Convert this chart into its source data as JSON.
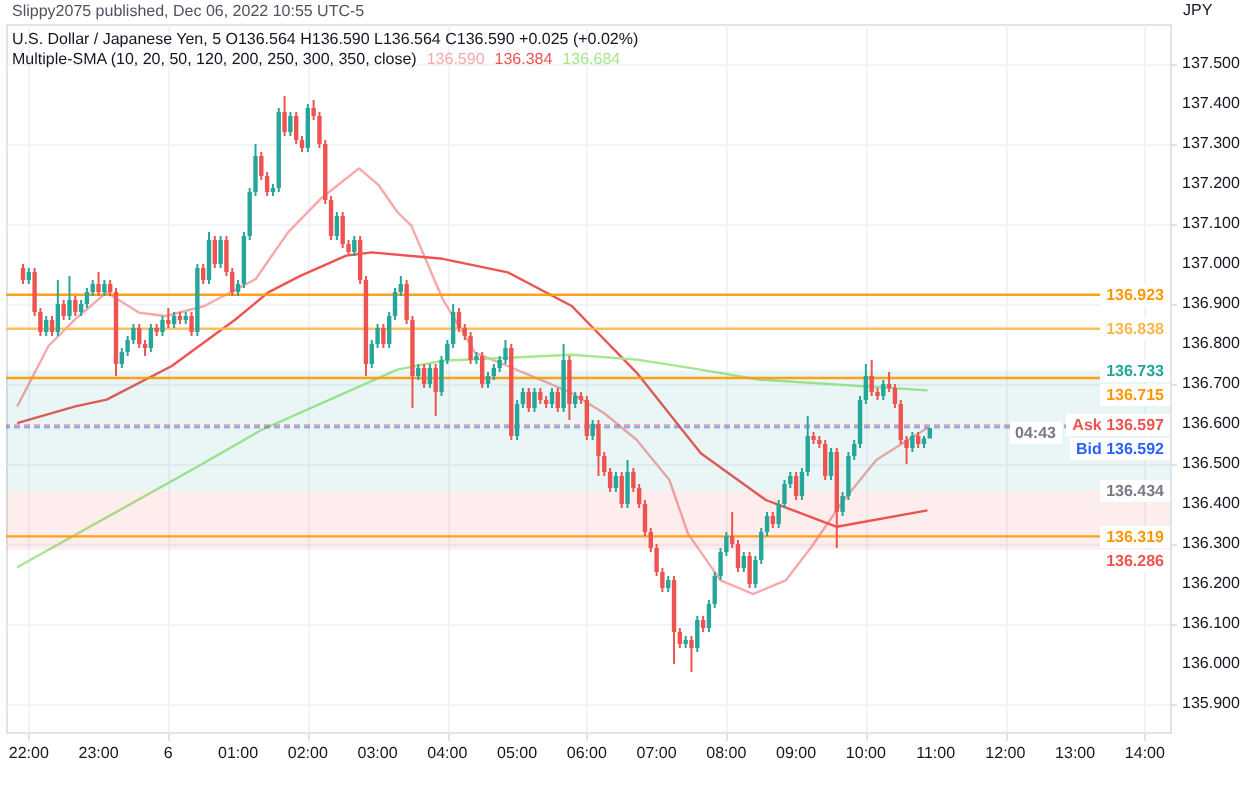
{
  "chart_data": {
    "type": "candlestick",
    "title": "Slippy2075 published, Dec 06, 2022 10:55 UTC-5",
    "subtitle": "U.S. Dollar / Japanese Yen, 5  O136.564 H136.590 L136.564 C136.590 +0.025 (+0.02%)",
    "ylabel": "JPY",
    "x": [
      "2022-12-05T21:55",
      "2022-12-05T22:00",
      "2022-12-05T22:05",
      "2022-12-05T22:10",
      "2022-12-05T22:15",
      "2022-12-05T22:20",
      "2022-12-05T22:25",
      "2022-12-05T22:30",
      "2022-12-05T22:35",
      "2022-12-05T22:40",
      "2022-12-05T22:45",
      "2022-12-05T22:50",
      "2022-12-05T22:55",
      "2022-12-05T23:00",
      "2022-12-05T23:05",
      "2022-12-05T23:10",
      "2022-12-05T23:15",
      "2022-12-05T23:20",
      "2022-12-05T23:25",
      "2022-12-05T23:30",
      "2022-12-05T23:35",
      "2022-12-05T23:40",
      "2022-12-05T23:45",
      "2022-12-05T23:50",
      "2022-12-05T23:55",
      "2022-12-06T00:00",
      "2022-12-06T00:05",
      "2022-12-06T00:10",
      "2022-12-06T00:15",
      "2022-12-06T00:20",
      "2022-12-06T00:25",
      "2022-12-06T00:30",
      "2022-12-06T00:35",
      "2022-12-06T00:40",
      "2022-12-06T00:45",
      "2022-12-06T00:50",
      "2022-12-06T00:55",
      "2022-12-06T01:00",
      "2022-12-06T01:05",
      "2022-12-06T01:10",
      "2022-12-06T01:15",
      "2022-12-06T01:20",
      "2022-12-06T01:25",
      "2022-12-06T01:30",
      "2022-12-06T01:35",
      "2022-12-06T01:40",
      "2022-12-06T01:45",
      "2022-12-06T01:50",
      "2022-12-06T01:55",
      "2022-12-06T02:00",
      "2022-12-06T02:05",
      "2022-12-06T02:10",
      "2022-12-06T02:15",
      "2022-12-06T02:20",
      "2022-12-06T02:25",
      "2022-12-06T02:30",
      "2022-12-06T02:35",
      "2022-12-06T02:40",
      "2022-12-06T02:45",
      "2022-12-06T02:50",
      "2022-12-06T02:55",
      "2022-12-06T03:00",
      "2022-12-06T03:05",
      "2022-12-06T03:10",
      "2022-12-06T03:15",
      "2022-12-06T03:20",
      "2022-12-06T03:25",
      "2022-12-06T03:30",
      "2022-12-06T03:35",
      "2022-12-06T03:40",
      "2022-12-06T03:45",
      "2022-12-06T03:50",
      "2022-12-06T03:55",
      "2022-12-06T04:00",
      "2022-12-06T04:05",
      "2022-12-06T04:10",
      "2022-12-06T04:15",
      "2022-12-06T04:20",
      "2022-12-06T04:25",
      "2022-12-06T04:30",
      "2022-12-06T04:35",
      "2022-12-06T04:40",
      "2022-12-06T04:45",
      "2022-12-06T04:50",
      "2022-12-06T04:55",
      "2022-12-06T05:00",
      "2022-12-06T05:05",
      "2022-12-06T05:10",
      "2022-12-06T05:15",
      "2022-12-06T05:20",
      "2022-12-06T05:25",
      "2022-12-06T05:30",
      "2022-12-06T05:35",
      "2022-12-06T05:40",
      "2022-12-06T05:45",
      "2022-12-06T05:50",
      "2022-12-06T05:55",
      "2022-12-06T06:00",
      "2022-12-06T06:05",
      "2022-12-06T06:10",
      "2022-12-06T06:15",
      "2022-12-06T06:20",
      "2022-12-06T06:25",
      "2022-12-06T06:30",
      "2022-12-06T06:35",
      "2022-12-06T06:40",
      "2022-12-06T06:45",
      "2022-12-06T06:50",
      "2022-12-06T06:55",
      "2022-12-06T07:00",
      "2022-12-06T07:05",
      "2022-12-06T07:10",
      "2022-12-06T07:15",
      "2022-12-06T07:20",
      "2022-12-06T07:25",
      "2022-12-06T07:30",
      "2022-12-06T07:35",
      "2022-12-06T07:40",
      "2022-12-06T07:45",
      "2022-12-06T07:50",
      "2022-12-06T07:55",
      "2022-12-06T08:00",
      "2022-12-06T08:05",
      "2022-12-06T08:10",
      "2022-12-06T08:15",
      "2022-12-06T08:20",
      "2022-12-06T08:25",
      "2022-12-06T08:30",
      "2022-12-06T08:35",
      "2022-12-06T08:40",
      "2022-12-06T08:45",
      "2022-12-06T08:50",
      "2022-12-06T08:55",
      "2022-12-06T09:00",
      "2022-12-06T09:05",
      "2022-12-06T09:10",
      "2022-12-06T09:15",
      "2022-12-06T09:20",
      "2022-12-06T09:25",
      "2022-12-06T09:30",
      "2022-12-06T09:35",
      "2022-12-06T09:40",
      "2022-12-06T09:45",
      "2022-12-06T09:50",
      "2022-12-06T09:55",
      "2022-12-06T10:00",
      "2022-12-06T10:05",
      "2022-12-06T10:10",
      "2022-12-06T10:15",
      "2022-12-06T10:20",
      "2022-12-06T10:25",
      "2022-12-06T10:30",
      "2022-12-06T10:35",
      "2022-12-06T10:40",
      "2022-12-06T10:45",
      "2022-12-06T10:50",
      "2022-12-06T10:55"
    ],
    "ohlc": [
      [
        136.99,
        137.0,
        136.95,
        136.96
      ],
      [
        136.96,
        136.99,
        136.95,
        136.98
      ],
      [
        136.98,
        136.99,
        136.87,
        136.88
      ],
      [
        136.88,
        136.89,
        136.82,
        136.83
      ],
      [
        136.83,
        136.87,
        136.82,
        136.86
      ],
      [
        136.86,
        136.87,
        136.82,
        136.83
      ],
      [
        136.83,
        136.96,
        136.82,
        136.9
      ],
      [
        136.9,
        136.91,
        136.86,
        136.87
      ],
      [
        136.87,
        136.97,
        136.86,
        136.91
      ],
      [
        136.91,
        136.92,
        136.87,
        136.88
      ],
      [
        136.88,
        136.91,
        136.87,
        136.9
      ],
      [
        136.9,
        136.94,
        136.89,
        136.93
      ],
      [
        136.93,
        136.96,
        136.92,
        136.95
      ],
      [
        136.95,
        136.98,
        136.92,
        136.93
      ],
      [
        136.93,
        136.96,
        136.92,
        136.95
      ],
      [
        136.95,
        136.96,
        136.92,
        136.93
      ],
      [
        136.93,
        136.94,
        136.72,
        136.75
      ],
      [
        136.75,
        136.79,
        136.74,
        136.78
      ],
      [
        136.78,
        136.82,
        136.77,
        136.81
      ],
      [
        136.81,
        136.85,
        136.8,
        136.84
      ],
      [
        136.84,
        136.85,
        136.79,
        136.8
      ],
      [
        136.8,
        136.81,
        136.77,
        136.79
      ],
      [
        136.79,
        136.85,
        136.78,
        136.84
      ],
      [
        136.84,
        136.85,
        136.82,
        136.83
      ],
      [
        136.83,
        136.87,
        136.82,
        136.86
      ],
      [
        136.86,
        136.89,
        136.84,
        136.85
      ],
      [
        136.85,
        136.88,
        136.84,
        136.87
      ],
      [
        136.87,
        136.88,
        136.85,
        136.86
      ],
      [
        136.86,
        136.88,
        136.85,
        136.87
      ],
      [
        136.87,
        136.88,
        136.82,
        136.83
      ],
      [
        136.83,
        137.0,
        136.82,
        136.99
      ],
      [
        136.99,
        137.0,
        136.95,
        136.96
      ],
      [
        136.96,
        137.08,
        136.95,
        137.06
      ],
      [
        137.06,
        137.07,
        136.99,
        137.0
      ],
      [
        137.0,
        137.07,
        136.99,
        137.06
      ],
      [
        137.06,
        137.07,
        136.97,
        136.98
      ],
      [
        136.98,
        136.99,
        136.92,
        136.93
      ],
      [
        136.93,
        136.96,
        136.92,
        136.95
      ],
      [
        136.95,
        137.08,
        136.94,
        137.07
      ],
      [
        137.07,
        137.19,
        137.06,
        137.18
      ],
      [
        137.18,
        137.3,
        137.17,
        137.27
      ],
      [
        137.27,
        137.28,
        137.21,
        137.22
      ],
      [
        137.22,
        137.23,
        137.17,
        137.18
      ],
      [
        137.18,
        137.2,
        137.17,
        137.19
      ],
      [
        137.19,
        137.39,
        137.18,
        137.38
      ],
      [
        137.38,
        137.42,
        137.32,
        137.33
      ],
      [
        137.33,
        137.38,
        137.32,
        137.37
      ],
      [
        137.37,
        137.38,
        137.3,
        137.31
      ],
      [
        137.31,
        137.32,
        137.28,
        137.29
      ],
      [
        137.29,
        137.4,
        137.28,
        137.39
      ],
      [
        137.39,
        137.41,
        137.36,
        137.37
      ],
      [
        137.37,
        137.38,
        137.29,
        137.3
      ],
      [
        137.3,
        137.31,
        137.15,
        137.16
      ],
      [
        137.16,
        137.17,
        137.06,
        137.07
      ],
      [
        137.07,
        137.13,
        137.06,
        137.12
      ],
      [
        137.12,
        137.13,
        137.04,
        137.05
      ],
      [
        137.05,
        137.06,
        137.02,
        137.03
      ],
      [
        137.03,
        137.07,
        137.02,
        137.06
      ],
      [
        137.06,
        137.07,
        136.95,
        136.96
      ],
      [
        136.96,
        136.97,
        136.72,
        136.75
      ],
      [
        136.75,
        136.81,
        136.74,
        136.8
      ],
      [
        136.8,
        136.85,
        136.79,
        136.84
      ],
      [
        136.84,
        136.85,
        136.79,
        136.8
      ],
      [
        136.8,
        136.88,
        136.79,
        136.87
      ],
      [
        136.87,
        136.94,
        136.86,
        136.93
      ],
      [
        136.93,
        136.97,
        136.92,
        136.95
      ],
      [
        136.95,
        136.96,
        136.85,
        136.86
      ],
      [
        136.86,
        136.87,
        136.64,
        136.72
      ],
      [
        136.72,
        136.75,
        136.71,
        136.74
      ],
      [
        136.74,
        136.75,
        136.69,
        136.7
      ],
      [
        136.7,
        136.75,
        136.69,
        136.74
      ],
      [
        136.74,
        136.75,
        136.62,
        136.68
      ],
      [
        136.68,
        136.77,
        136.67,
        136.76
      ],
      [
        136.76,
        136.81,
        136.75,
        136.8
      ],
      [
        136.8,
        136.9,
        136.79,
        136.88
      ],
      [
        136.88,
        136.89,
        136.83,
        136.84
      ],
      [
        136.84,
        136.85,
        136.81,
        136.82
      ],
      [
        136.82,
        136.83,
        136.75,
        136.76
      ],
      [
        136.76,
        136.78,
        136.75,
        136.77
      ],
      [
        136.77,
        136.78,
        136.69,
        136.7
      ],
      [
        136.7,
        136.73,
        136.69,
        136.72
      ],
      [
        136.72,
        136.75,
        136.71,
        136.74
      ],
      [
        136.74,
        136.77,
        136.73,
        136.76
      ],
      [
        136.76,
        136.81,
        136.75,
        136.79
      ],
      [
        136.79,
        136.8,
        136.56,
        136.57
      ],
      [
        136.57,
        136.66,
        136.56,
        136.65
      ],
      [
        136.65,
        136.69,
        136.64,
        136.68
      ],
      [
        136.68,
        136.69,
        136.63,
        136.64
      ],
      [
        136.64,
        136.69,
        136.63,
        136.68
      ],
      [
        136.68,
        136.69,
        136.65,
        136.66
      ],
      [
        136.66,
        136.67,
        136.64,
        136.65
      ],
      [
        136.65,
        136.69,
        136.64,
        136.68
      ],
      [
        136.68,
        136.69,
        136.63,
        136.64
      ],
      [
        136.64,
        136.8,
        136.63,
        136.76
      ],
      [
        136.76,
        136.77,
        136.61,
        136.65
      ],
      [
        136.65,
        136.68,
        136.64,
        136.67
      ],
      [
        136.67,
        136.68,
        136.65,
        136.66
      ],
      [
        136.66,
        136.67,
        136.56,
        136.57
      ],
      [
        136.57,
        136.61,
        136.56,
        136.6
      ],
      [
        136.6,
        136.61,
        136.47,
        136.52
      ],
      [
        136.52,
        136.53,
        136.47,
        136.48
      ],
      [
        136.48,
        136.49,
        136.43,
        136.44
      ],
      [
        136.44,
        136.48,
        136.43,
        136.47
      ],
      [
        136.47,
        136.48,
        136.39,
        136.4
      ],
      [
        136.4,
        136.51,
        136.39,
        136.48
      ],
      [
        136.48,
        136.49,
        136.43,
        136.44
      ],
      [
        136.44,
        136.45,
        136.39,
        136.4
      ],
      [
        136.4,
        136.41,
        136.32,
        136.33
      ],
      [
        136.33,
        136.34,
        136.28,
        136.29
      ],
      [
        136.29,
        136.3,
        136.22,
        136.23
      ],
      [
        136.23,
        136.24,
        136.18,
        136.19
      ],
      [
        136.19,
        136.22,
        136.18,
        136.21
      ],
      [
        136.21,
        136.22,
        136.0,
        136.08
      ],
      [
        136.08,
        136.09,
        136.04,
        136.05
      ],
      [
        136.05,
        136.07,
        136.04,
        136.06
      ],
      [
        136.06,
        136.07,
        135.98,
        136.04
      ],
      [
        136.04,
        136.12,
        136.03,
        136.11
      ],
      [
        136.11,
        136.12,
        136.08,
        136.09
      ],
      [
        136.09,
        136.16,
        136.08,
        136.15
      ],
      [
        136.15,
        136.23,
        136.14,
        136.22
      ],
      [
        136.22,
        136.29,
        136.21,
        136.28
      ],
      [
        136.28,
        136.33,
        136.27,
        136.32
      ],
      [
        136.32,
        136.38,
        136.29,
        136.3
      ],
      [
        136.3,
        136.31,
        136.23,
        136.24
      ],
      [
        136.24,
        136.28,
        136.23,
        136.27
      ],
      [
        136.27,
        136.28,
        136.19,
        136.2
      ],
      [
        136.2,
        136.27,
        136.19,
        136.26
      ],
      [
        136.26,
        136.34,
        136.25,
        136.33
      ],
      [
        136.33,
        136.38,
        136.32,
        136.37
      ],
      [
        136.37,
        136.38,
        136.34,
        136.35
      ],
      [
        136.35,
        136.41,
        136.34,
        136.4
      ],
      [
        136.4,
        136.46,
        136.39,
        136.45
      ],
      [
        136.45,
        136.48,
        136.44,
        136.47
      ],
      [
        136.47,
        136.48,
        136.41,
        136.42
      ],
      [
        136.42,
        136.49,
        136.41,
        136.48
      ],
      [
        136.48,
        136.62,
        136.47,
        136.57
      ],
      [
        136.57,
        136.58,
        136.55,
        136.56
      ],
      [
        136.56,
        136.57,
        136.54,
        136.55
      ],
      [
        136.55,
        136.56,
        136.46,
        136.47
      ],
      [
        136.47,
        136.54,
        136.46,
        136.53
      ],
      [
        136.53,
        136.54,
        136.29,
        136.38
      ],
      [
        136.38,
        136.43,
        136.37,
        136.42
      ],
      [
        136.42,
        136.53,
        136.41,
        136.52
      ],
      [
        136.52,
        136.56,
        136.51,
        136.55
      ],
      [
        136.55,
        136.67,
        136.54,
        136.66
      ],
      [
        136.66,
        136.75,
        136.65,
        136.72
      ],
      [
        136.72,
        136.76,
        136.67,
        136.68
      ],
      [
        136.68,
        136.69,
        136.66,
        136.67
      ],
      [
        136.67,
        136.71,
        136.66,
        136.7
      ],
      [
        136.7,
        136.73,
        136.68,
        136.69
      ],
      [
        136.69,
        136.7,
        136.64,
        136.65
      ],
      [
        136.65,
        136.66,
        136.55,
        136.56
      ],
      [
        136.56,
        136.57,
        136.5,
        136.54
      ],
      [
        136.54,
        136.58,
        136.53,
        136.57
      ],
      [
        136.57,
        136.58,
        136.54,
        136.55
      ],
      [
        136.55,
        136.57,
        136.54,
        136.564
      ],
      [
        136.564,
        136.59,
        136.564,
        136.59
      ]
    ],
    "series": [
      {
        "type": "line",
        "color": "#f7a8a8",
        "x": [
          "2022-12-05T21:50",
          "2022-12-05T22:17",
          "2022-12-05T22:40",
          "2022-12-05T23:07",
          "2022-12-05T23:35",
          "2022-12-05T23:58",
          "2022-12-06T00:31",
          "2022-12-06T01:15",
          "2022-12-06T01:43",
          "2022-12-06T02:11",
          "2022-12-06T02:44",
          "2022-12-06T03:01",
          "2022-12-06T03:17",
          "2022-12-06T03:29",
          "2022-12-06T03:56",
          "2022-12-06T04:24",
          "2022-12-06T04:52",
          "2022-12-06T05:20",
          "2022-12-06T05:47",
          "2022-12-06T06:15",
          "2022-12-06T06:43",
          "2022-12-06T07:11",
          "2022-12-06T07:27",
          "2022-12-06T07:55",
          "2022-12-06T08:23",
          "2022-12-06T08:51",
          "2022-12-06T09:13",
          "2022-12-06T09:41",
          "2022-12-06T10:09",
          "2022-12-06T10:36",
          "2022-12-06T10:53"
        ],
        "values": [
          136.644,
          136.795,
          136.862,
          136.929,
          136.878,
          136.87,
          136.895,
          136.962,
          137.079,
          137.163,
          137.239,
          137.197,
          137.13,
          137.096,
          136.912,
          136.778,
          136.745,
          136.711,
          136.677,
          136.627,
          136.56,
          136.46,
          136.326,
          136.209,
          136.175,
          136.209,
          136.292,
          136.41,
          136.51,
          136.56,
          136.59
        ]
      },
      {
        "type": "line",
        "color": "#ef5350",
        "x": [
          "2022-12-05T21:50",
          "2022-12-05T22:40",
          "2022-12-05T23:07",
          "2022-12-06T00:03",
          "2022-12-06T00:58",
          "2022-12-06T01:26",
          "2022-12-06T01:54",
          "2022-12-06T02:33",
          "2022-12-06T02:55",
          "2022-12-06T03:56",
          "2022-12-06T04:52",
          "2022-12-06T05:47",
          "2022-12-06T06:43",
          "2022-12-06T07:38",
          "2022-12-06T08:34",
          "2022-12-06T09:35",
          "2022-12-06T10:53"
        ],
        "values": [
          136.602,
          136.644,
          136.661,
          136.745,
          136.862,
          136.929,
          136.971,
          137.021,
          137.029,
          137.013,
          136.979,
          136.895,
          136.728,
          136.527,
          136.41,
          136.343,
          136.384
        ]
      },
      {
        "type": "line",
        "color": "#a5e88c",
        "x": [
          "2022-12-05T21:50",
          "2022-12-06T00:25",
          "2022-12-06T01:20",
          "2022-12-06T03:17",
          "2022-12-06T03:56",
          "2022-12-06T05:47",
          "2022-12-06T06:43",
          "2022-12-06T07:38",
          "2022-12-06T08:28",
          "2022-12-06T10:53"
        ],
        "values": [
          136.242,
          136.493,
          136.585,
          136.736,
          136.758,
          136.773,
          136.761,
          136.736,
          136.711,
          136.684
        ]
      }
    ],
    "xlim": [
      "2022-12-05T21:49",
      "2022-12-06T14:13"
    ],
    "xticks": [
      {
        "value": "2022-12-05T22:00",
        "label": "22:00"
      },
      {
        "value": "2022-12-05T23:00",
        "label": "23:00"
      },
      {
        "value": "2022-12-06T00:00",
        "label": "6"
      },
      {
        "value": "2022-12-06T01:00",
        "label": "01:00"
      },
      {
        "value": "2022-12-06T02:00",
        "label": "02:00"
      },
      {
        "value": "2022-12-06T03:00",
        "label": "03:00"
      },
      {
        "value": "2022-12-06T04:00",
        "label": "04:00"
      },
      {
        "value": "2022-12-06T05:00",
        "label": "05:00"
      },
      {
        "value": "2022-12-06T06:00",
        "label": "06:00"
      },
      {
        "value": "2022-12-06T07:00",
        "label": "07:00"
      },
      {
        "value": "2022-12-06T08:00",
        "label": "08:00"
      },
      {
        "value": "2022-12-06T09:00",
        "label": "09:00"
      },
      {
        "value": "2022-12-06T10:00",
        "label": "10:00"
      },
      {
        "value": "2022-12-06T11:00",
        "label": "11:00"
      },
      {
        "value": "2022-12-06T12:00",
        "label": "12:00"
      },
      {
        "value": "2022-12-06T13:00",
        "label": "13:00"
      },
      {
        "value": "2022-12-06T14:00",
        "label": "14:00"
      }
    ],
    "ylim": [
      135.83,
      137.6
    ],
    "yticks": [
      {
        "value": 135.9,
        "label": "135.900"
      },
      {
        "value": 136.0,
        "label": "136.000"
      },
      {
        "value": 136.1,
        "label": "136.100"
      },
      {
        "value": 136.2,
        "label": "136.200"
      },
      {
        "value": 136.3,
        "label": "136.300"
      },
      {
        "value": 136.4,
        "label": "136.400"
      },
      {
        "value": 136.5,
        "label": "136.500"
      },
      {
        "value": 136.6,
        "label": "136.600"
      },
      {
        "value": 136.7,
        "label": "136.700"
      },
      {
        "value": 136.8,
        "label": "136.800"
      },
      {
        "value": 136.9,
        "label": "136.900"
      },
      {
        "value": 137.0,
        "label": "137.000"
      },
      {
        "value": 137.1,
        "label": "137.100"
      },
      {
        "value": 137.2,
        "label": "137.200"
      },
      {
        "value": 137.3,
        "label": "137.300"
      },
      {
        "value": 137.4,
        "label": "137.400"
      },
      {
        "value": 137.5,
        "label": "137.500"
      }
    ],
    "grid": true,
    "ref_lines": [
      {
        "axis": "y",
        "value": 136.923,
        "label": "136.923",
        "color": "#ff9800",
        "line_style": "solid"
      },
      {
        "axis": "y",
        "value": 136.838,
        "label": "136.838",
        "color": "#ffb74d",
        "line_style": "solid"
      },
      {
        "axis": "y",
        "value": 136.715,
        "label": "136.715",
        "color": "#ff9800",
        "line_style": "solid"
      },
      {
        "axis": "y",
        "value": 136.597,
        "label": "Ask 136.597",
        "color": "#ef5350",
        "line_style": "dashed"
      },
      {
        "axis": "y",
        "value": 136.592,
        "label": "Bid 136.592",
        "color": "#2962ff",
        "line_style": "dashed"
      },
      {
        "axis": "y",
        "value": 136.319,
        "label": "136.319",
        "color": "#ff9800",
        "line_style": "solid"
      }
    ],
    "bands": [
      {
        "axis": "y",
        "from": 136.434,
        "to": 136.733,
        "label": "136.733",
        "color": "#26a69a"
      },
      {
        "axis": "y",
        "from": 136.286,
        "to": 136.434,
        "label": "136.286",
        "color": "#ef5350"
      }
    ],
    "annotations": [
      "Multiple-SMA (10, 20, 50, 120, 200, 250, 300, 350, close)",
      "136.590",
      "136.384",
      "136.684",
      {
        "text": "04:43",
        "y": 136.58
      },
      {
        "text": "136.434",
        "y": 136.434
      }
    ]
  }
}
